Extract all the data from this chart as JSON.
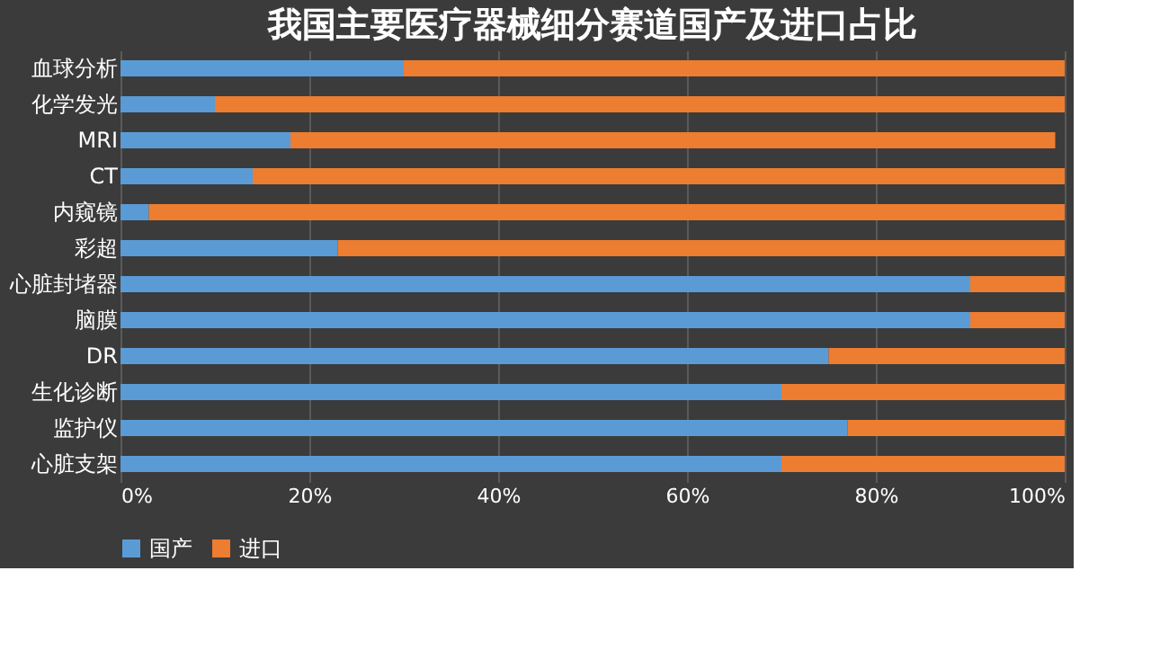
{
  "chart_data": {
    "type": "bar",
    "orientation": "horizontal",
    "stacked": true,
    "title": "我国主要医疗器械细分赛道国产及进口占比",
    "categories": [
      "血球分析",
      "化学发光",
      "MRI",
      "CT",
      "内窥镜",
      "彩超",
      "心脏封堵器",
      "脑膜",
      "DR",
      "生化诊断",
      "监护仪",
      "心脏支架"
    ],
    "series": [
      {
        "name": "国产",
        "color": "#5b9bd5",
        "values": [
          30,
          10,
          18,
          14,
          3,
          23,
          90,
          90,
          75,
          70,
          77,
          70
        ]
      },
      {
        "name": "进口",
        "color": "#ed7d31",
        "values": [
          70,
          90,
          81,
          86,
          97,
          77,
          10,
          10,
          25,
          30,
          23,
          30
        ]
      }
    ],
    "xlim": [
      0,
      100
    ],
    "xticks": [
      {
        "value": 0,
        "label": "0%"
      },
      {
        "value": 20,
        "label": "20%"
      },
      {
        "value": 40,
        "label": "40%"
      },
      {
        "value": 60,
        "label": "60%"
      },
      {
        "value": 80,
        "label": "80%"
      },
      {
        "value": 100,
        "label": "100%"
      }
    ],
    "grid": "x",
    "legend": "bottom"
  }
}
